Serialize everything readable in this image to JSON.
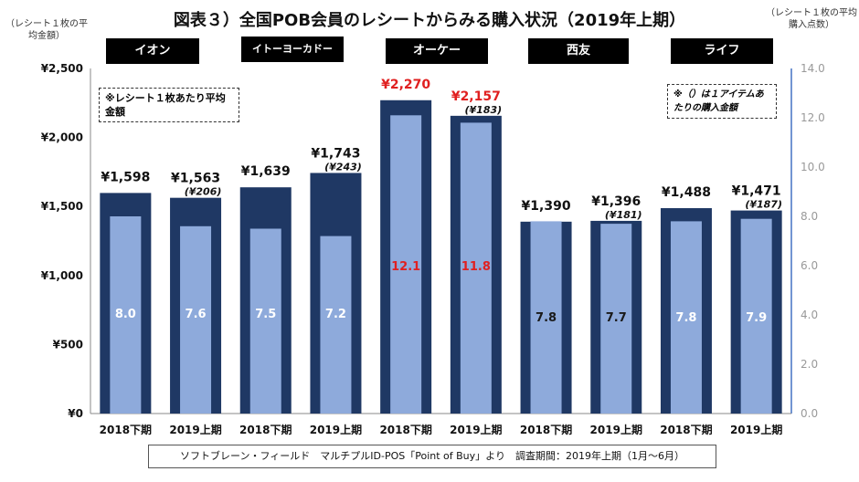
{
  "title": "図表３）全国POB会員のレシートからみる購入状況（2019年上期）",
  "left_axis_note": "（レシート１枚の平均金額）",
  "right_axis_note": "（レシート１枚の平均購入点数）",
  "stores": [
    "イオン",
    "イトーヨーカドー",
    "オーケー",
    "西友",
    "ライフ"
  ],
  "note_left": "※レシート１枚あたり平均金額",
  "note_right": "※（）は１アイテムあたりの購入金額",
  "footer": "ソフトブレーン・フィールド　マルチプルID-POS「Point of Buy」より　調査期間：2019年上期（1月～6月）",
  "colors": {
    "bar_outer": "#1f3864",
    "bar_inner": "#8eaadb",
    "highlight": "#e02020",
    "axis_right": "#4472c4"
  },
  "chart_data": {
    "type": "bar",
    "categories": [
      "2018下期",
      "2019上期",
      "2018下期",
      "2019上期",
      "2018下期",
      "2019上期",
      "2018下期",
      "2019上期",
      "2018下期",
      "2019上期"
    ],
    "groups": [
      "イオン",
      "イオン",
      "イトーヨーカドー",
      "イトーヨーカドー",
      "オーケー",
      "オーケー",
      "西友",
      "西友",
      "ライフ",
      "ライフ"
    ],
    "series": [
      {
        "axis": "left",
        "values": [
          1598,
          1563,
          1639,
          1743,
          2270,
          2157,
          1390,
          1396,
          1488,
          1471
        ]
      },
      {
        "axis": "right",
        "values": [
          8.0,
          7.6,
          7.5,
          7.2,
          12.1,
          11.8,
          7.8,
          7.7,
          7.8,
          7.9
        ]
      }
    ],
    "amount_labels": [
      "¥1,598",
      "¥1,563",
      "¥1,639",
      "¥1,743",
      "¥2,270",
      "¥2,157",
      "¥1,390",
      "¥1,396",
      "¥1,488",
      "¥1,471"
    ],
    "count_labels": [
      "8.0",
      "7.6",
      "7.5",
      "7.2",
      "12.1",
      "11.8",
      "7.8",
      "7.7",
      "7.8",
      "7.9"
    ],
    "per_item_labels": [
      "",
      "(¥206)",
      "",
      "(¥243)",
      "",
      "(¥183)",
      "",
      "(¥181)",
      "",
      "(¥187)"
    ],
    "left_ticks": [
      "¥0",
      "¥500",
      "¥1,000",
      "¥1,500",
      "¥2,000",
      "¥2,500"
    ],
    "right_ticks": [
      "0.0",
      "2.0",
      "4.0",
      "6.0",
      "8.0",
      "10.0",
      "12.0",
      "14.0"
    ],
    "ylim_left": [
      0,
      2500
    ],
    "ylim_right": [
      0,
      14
    ],
    "highlight_group": "オーケー",
    "grid": false
  }
}
